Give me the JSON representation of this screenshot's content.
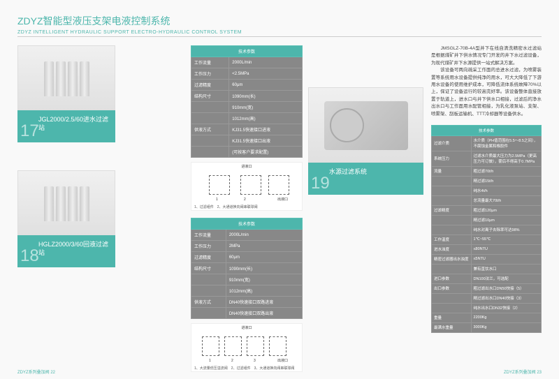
{
  "header": {
    "title_cn": "ZDYZ智能型液压支架电液控制系统",
    "title_en": "ZDYZ INTELLIGENT HYDRAULIC SUPPORT ELECTRO-HYDRAULIC CONTROL SYSTEM"
  },
  "product17": {
    "num": "17",
    "name": "JGL2000/2.5/60进水过滤站",
    "spec_header": "技术参数",
    "rows": [
      [
        "工作流量",
        "2000L/min"
      ],
      [
        "工作压力",
        "<2.5MPa"
      ],
      [
        "过滤精度",
        "60μm"
      ],
      [
        "结构尺寸",
        "1090mm(长)"
      ],
      [
        "",
        "910mm(宽)"
      ],
      [
        "",
        "1012mm(高)"
      ],
      [
        "供液方式",
        "KJ31.5快速接口进液"
      ],
      [
        "",
        "KJ31.5快速接口出液"
      ],
      [
        "",
        "(可按客户要求配置)"
      ]
    ],
    "diagram": {
      "inlet": "进液口",
      "outlet": "出液口",
      "nums": [
        "1",
        "2"
      ],
      "caption": "1、过滤组件　2、大通道换向阀串联球阀"
    }
  },
  "product18": {
    "num": "18",
    "name": "HGLZ2000/3/60回液过滤站",
    "spec_header": "技术参数",
    "rows": [
      [
        "工作流量",
        "2000L/min"
      ],
      [
        "工作压力",
        "2MPa"
      ],
      [
        "过滤精度",
        "60μm"
      ],
      [
        "结构尺寸",
        "1090mm(长)"
      ],
      [
        "",
        "910mm(宽)"
      ],
      [
        "",
        "1012mm(高)"
      ],
      [
        "供液方式",
        "DN40快速接口双路进液"
      ],
      [
        "",
        "DN40快速接口双路出液"
      ]
    ],
    "diagram": {
      "inlet": "进液口",
      "outlet": "出液口",
      "nums": [
        "1",
        "2",
        "3"
      ],
      "caption": "1、大流量低压溢流阀　2、过滤组件　3、大通道换向阀串联球阀"
    }
  },
  "product19": {
    "num": "19",
    "name": "水源过滤系统",
    "description": "　　JMSGLZ-70B-4A型并下在线自清洗精密水过滤站是根据煤矿井下供水情况专门开发的井下水过滤设备，为现代煤矿井下水源提供一站式解决方案。\n　　该设备可两向疏采工作面的总进水过滤，为喷雾装置等系统用水设备提供纯净的用水，可大大降低了下游用水设备的使用维护成本，可降低流体系统故障70%以上，保证了设备运行的较高完好率。该设备整体直接放置于轨道上，进水口与井下供水口相接，过滤后的净水出水口与工作面用水配管相接，为乳化液泵站、支架、喷雾架、刮板运输机、TTT冷却器等设备供水。",
    "spec_header": "技术参数",
    "rows": [
      [
        "过滤介质",
        "水介质（PH值范围在5.5～8.5之间），不腐蚀金属和橡胶件"
      ],
      [
        "系统压力",
        "过滤水介质最大压力为2.5MPa（更高压力可订做），雾后不得高于0.7MPa"
      ],
      [
        "流量",
        "粗过滤70t/h"
      ],
      [
        "",
        "精过滤15t/h"
      ],
      [
        "",
        "纯水4t/h"
      ],
      [
        "",
        "总流量最大70t/h"
      ],
      [
        "过滤精度",
        "粗过滤120μm"
      ],
      [
        "",
        "精过滤10μm"
      ],
      [
        "",
        "纯水对离子去除率可达98%"
      ],
      [
        "工作温度",
        "1℃~55℃"
      ],
      [
        "进水浊度",
        "≤80NTU"
      ],
      [
        "精密过滤器出水浊度",
        "≤5NTU"
      ],
      [
        "",
        "兼有直饮水口"
      ],
      [
        "进口参数",
        "DN100法兰，可选配"
      ],
      [
        "出口参数",
        "粗过滤出水口DN50快接（5）"
      ],
      [
        "",
        "精过滤出水口DN40快接（3）"
      ],
      [
        "",
        "纯水出水口DN32快接（2）"
      ],
      [
        "重量",
        "2200Kg"
      ],
      [
        "最满水重量",
        "3000Kg"
      ]
    ]
  },
  "footer": {
    "left": "ZDYZ系列叠加阀 22",
    "right": "ZDYZ系列叠加阀 23"
  },
  "colors": {
    "teal": "#4db6ac",
    "gray": "#888"
  }
}
